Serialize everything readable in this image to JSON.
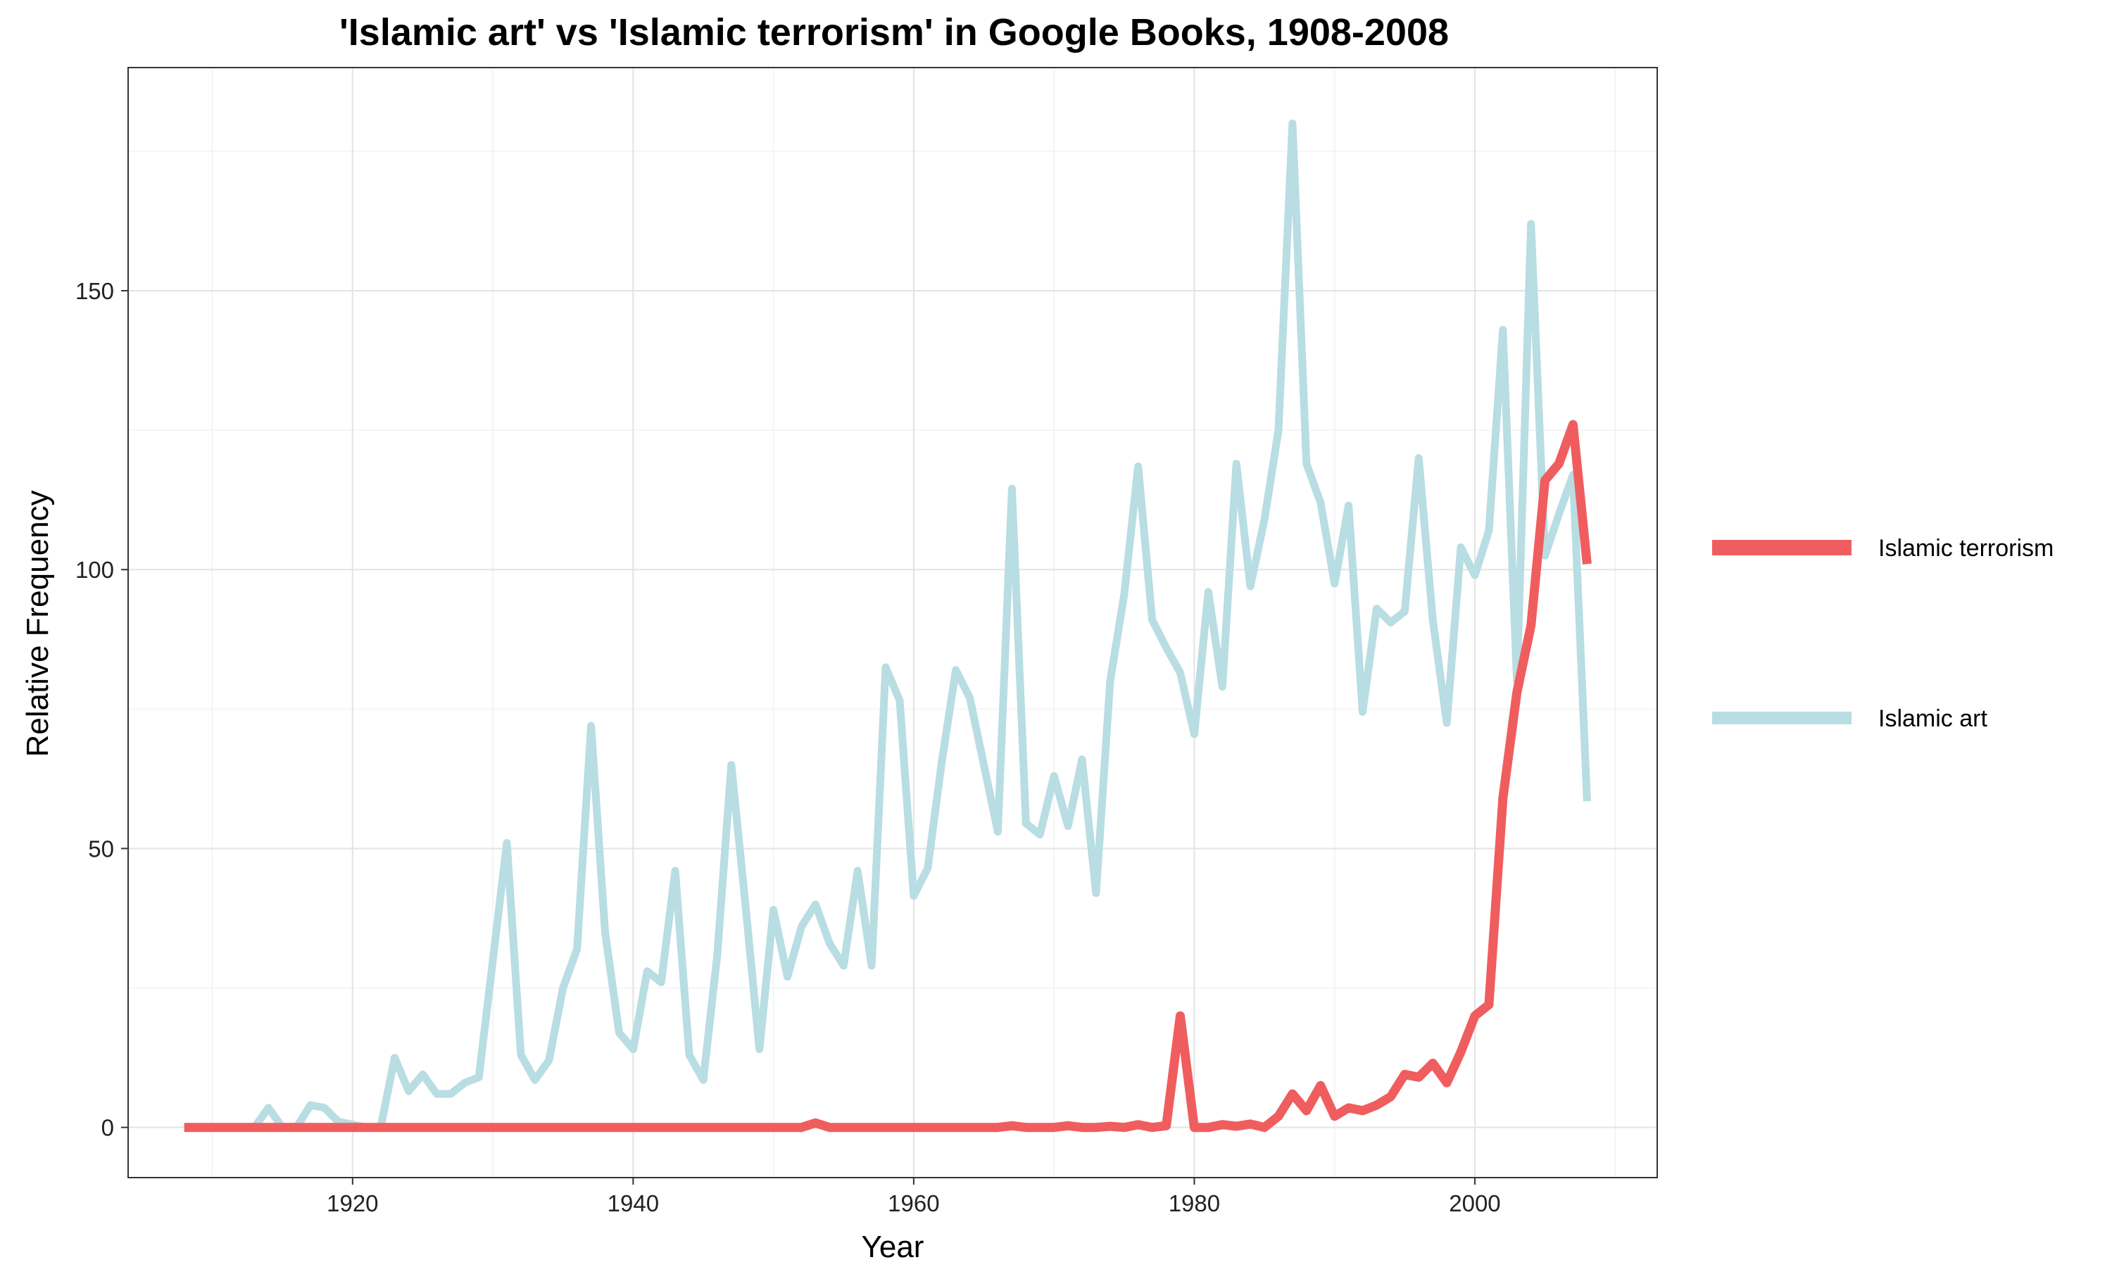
{
  "chart_data": {
    "type": "line",
    "title": "'Islamic art' vs 'Islamic terrorism' in Google Books, 1908-2008",
    "xlabel": "Year",
    "ylabel": "Relative Frequency",
    "xlim": [
      1904,
      2013
    ],
    "ylim": [
      -9,
      190
    ],
    "x_ticks": [
      1920,
      1940,
      1960,
      1980,
      2000
    ],
    "y_ticks": [
      0,
      50,
      100,
      150
    ],
    "grid": true,
    "legend_position": "right",
    "x": [
      1908,
      1909,
      1910,
      1911,
      1912,
      1913,
      1914,
      1915,
      1916,
      1917,
      1918,
      1919,
      1920,
      1921,
      1922,
      1923,
      1924,
      1925,
      1926,
      1927,
      1928,
      1929,
      1930,
      1931,
      1932,
      1933,
      1934,
      1935,
      1936,
      1937,
      1938,
      1939,
      1940,
      1941,
      1942,
      1943,
      1944,
      1945,
      1946,
      1947,
      1948,
      1949,
      1950,
      1951,
      1952,
      1953,
      1954,
      1955,
      1956,
      1957,
      1958,
      1959,
      1960,
      1961,
      1962,
      1963,
      1964,
      1965,
      1966,
      1967,
      1968,
      1969,
      1970,
      1971,
      1972,
      1973,
      1974,
      1975,
      1976,
      1977,
      1978,
      1979,
      1980,
      1981,
      1982,
      1983,
      1984,
      1985,
      1986,
      1987,
      1988,
      1989,
      1990,
      1991,
      1992,
      1993,
      1994,
      1995,
      1996,
      1997,
      1998,
      1999,
      2000,
      2001,
      2002,
      2003,
      2004,
      2005,
      2006,
      2007,
      2008
    ],
    "series": [
      {
        "name": "Islamic terrorism",
        "color": "#f05d5e",
        "values": [
          0,
          0,
          0,
          0,
          0,
          0,
          0,
          0,
          0,
          0,
          0,
          0,
          0,
          0,
          0,
          0,
          0,
          0,
          0,
          0,
          0,
          0,
          0,
          0,
          0,
          0,
          0,
          0,
          0,
          0,
          0,
          0,
          0,
          0,
          0,
          0,
          0,
          0,
          0,
          0,
          0,
          0,
          0,
          0,
          0,
          0.8,
          0,
          0,
          0,
          0,
          0,
          0,
          0,
          0,
          0,
          0,
          0,
          0,
          0,
          0.3,
          0,
          0,
          0,
          0.3,
          0,
          0,
          0.2,
          0,
          0.5,
          0,
          0.3,
          20,
          0,
          0,
          0.5,
          0.2,
          0.6,
          0,
          2,
          6,
          3,
          7.5,
          2,
          3.5,
          3,
          4,
          5.5,
          9.5,
          9,
          11.5,
          8,
          13.5,
          20,
          22,
          59,
          78,
          90,
          116,
          119,
          126,
          101
        ]
      },
      {
        "name": "Islamic art",
        "color": "#b8dde2",
        "values": [
          0,
          0,
          0,
          0,
          0,
          0,
          3.5,
          0,
          0,
          4,
          3.5,
          1,
          0.5,
          0,
          0,
          12.5,
          6.5,
          9.5,
          6,
          6,
          8,
          9,
          30,
          51,
          13,
          8.5,
          12,
          25,
          32,
          72,
          35,
          17,
          14,
          28,
          26,
          46,
          13,
          8.5,
          31,
          65,
          40,
          14,
          39,
          27,
          36,
          40,
          33,
          29,
          46,
          29,
          82.5,
          76.5,
          41.5,
          46.5,
          65.5,
          82,
          77,
          65,
          53,
          114.5,
          54.5,
          52.5,
          63,
          54,
          66,
          42,
          80,
          95.5,
          118.5,
          91,
          86,
          81.5,
          70.5,
          96,
          79,
          119,
          97,
          109,
          125,
          180,
          119,
          112,
          97.5,
          111.5,
          74.5,
          93,
          90.5,
          92.5,
          120,
          91,
          72.5,
          104,
          99,
          107,
          143,
          80,
          162,
          102.5,
          110,
          117,
          58.5
        ]
      }
    ]
  }
}
